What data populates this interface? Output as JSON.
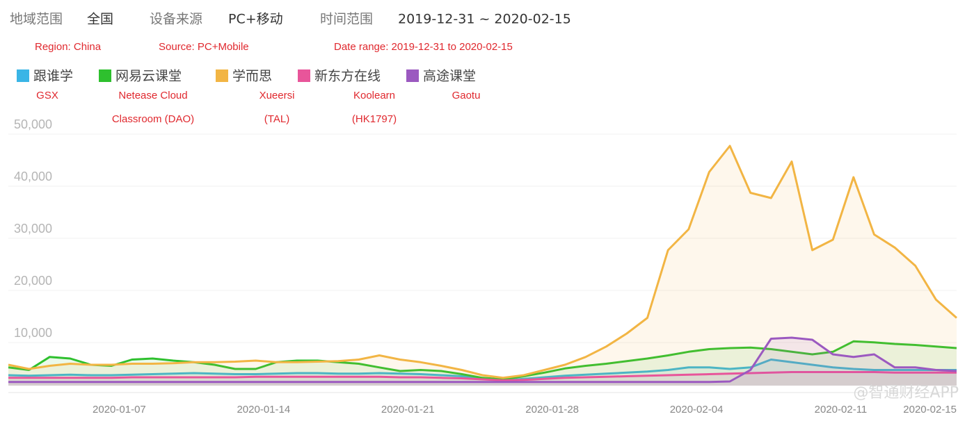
{
  "chart_data": {
    "type": "line",
    "header": [
      {
        "key": "地域范围",
        "value": "全国",
        "note": "Region: China"
      },
      {
        "key": "设备来源",
        "value": "PC+移动",
        "note": "Source: PC+Mobile"
      },
      {
        "key": "时间范围",
        "value": "2019-12-31 ~ 2020-02-15",
        "note": "Date range: 2019-12-31 to 2020-02-15"
      }
    ],
    "watermark": "@智通财经APP",
    "categories": [
      null,
      null,
      null,
      null,
      null,
      null,
      null,
      "2020-01-07",
      null,
      null,
      null,
      null,
      null,
      null,
      "2020-01-14",
      null,
      null,
      null,
      null,
      null,
      null,
      "2020-01-21",
      null,
      null,
      null,
      null,
      null,
      null,
      "2020-01-28",
      null,
      null,
      null,
      null,
      null,
      null,
      "2020-02-04",
      null,
      null,
      null,
      null,
      null,
      null,
      "2020-02-11",
      null,
      null,
      null,
      "2020-02-15"
    ],
    "ylim": [
      0,
      50000
    ],
    "yticks": [
      {
        "value": 10000,
        "label": "10,000"
      },
      {
        "value": 20000,
        "label": "20,000"
      },
      {
        "value": 30000,
        "label": "30,000"
      },
      {
        "value": 40000,
        "label": "40,000"
      },
      {
        "value": 50000,
        "label": "50,000"
      }
    ],
    "grid": true,
    "series": [
      {
        "name": "跟谁学",
        "annotation": [
          "GSX"
        ],
        "color": "#3ab5e6",
        "values": [
          2000,
          1900,
          2000,
          2100,
          2000,
          2000,
          2100,
          2200,
          2300,
          2400,
          2300,
          2200,
          2200,
          2300,
          2400,
          2400,
          2300,
          2300,
          2400,
          2300,
          2200,
          2000,
          1800,
          1400,
          1000,
          1300,
          1600,
          1900,
          2100,
          2300,
          2500,
          2700,
          3000,
          3500,
          3500,
          3200,
          3500,
          5000,
          4500,
          4000,
          3500,
          3200,
          3000,
          3000,
          3000,
          3000,
          3000
        ]
      },
      {
        "name": "网易云课堂",
        "annotation": [
          "Netease Cloud",
          "Classroom (DAO)"
        ],
        "color": "#2ec02e",
        "values": [
          3500,
          3000,
          5500,
          5200,
          4000,
          3800,
          5000,
          5200,
          4800,
          4500,
          4000,
          3200,
          3200,
          4500,
          4800,
          4800,
          4500,
          4200,
          3500,
          2800,
          3000,
          2800,
          2200,
          1500,
          1200,
          1800,
          2500,
          3300,
          3800,
          4200,
          4700,
          5200,
          5800,
          6500,
          7000,
          7200,
          7300,
          7000,
          6500,
          6000,
          6500,
          8500,
          8300,
          8000,
          7800,
          7500,
          7200
        ]
      },
      {
        "name": "学而思",
        "annotation": [
          "Xueersi",
          "(TAL)"
        ],
        "color": "#f2b544",
        "values": [
          4000,
          3200,
          3800,
          4200,
          4000,
          4000,
          4200,
          4200,
          4300,
          4500,
          4500,
          4600,
          4800,
          4500,
          4500,
          4600,
          4700,
          5000,
          5800,
          5000,
          4500,
          3800,
          3000,
          2000,
          1500,
          2000,
          3000,
          4000,
          5500,
          7500,
          10000,
          13000,
          26000,
          30000,
          41000,
          46000,
          37000,
          36000,
          43000,
          26000,
          28000,
          40000,
          29000,
          26500,
          23000,
          16500,
          13000
        ]
      },
      {
        "name": "新东方在线",
        "annotation": [
          "Koolearn",
          "(HK1797)"
        ],
        "color": "#e8559a",
        "values": [
          1500,
          1500,
          1500,
          1500,
          1500,
          1500,
          1600,
          1600,
          1600,
          1600,
          1600,
          1600,
          1700,
          1700,
          1700,
          1700,
          1700,
          1700,
          1700,
          1600,
          1600,
          1500,
          1400,
          1200,
          1000,
          1100,
          1300,
          1500,
          1600,
          1700,
          1800,
          1900,
          2000,
          2100,
          2200,
          2300,
          2400,
          2500,
          2600,
          2600,
          2600,
          2600,
          2600,
          2500,
          2500,
          2500,
          2500
        ]
      },
      {
        "name": "高途课堂",
        "annotation": [
          "Gaotu"
        ],
        "color": "#9b59c0",
        "values": [
          700,
          700,
          700,
          700,
          700,
          700,
          700,
          700,
          700,
          700,
          700,
          700,
          700,
          700,
          700,
          700,
          700,
          700,
          700,
          700,
          700,
          700,
          700,
          700,
          700,
          700,
          700,
          700,
          700,
          700,
          700,
          700,
          700,
          700,
          700,
          800,
          3000,
          9000,
          9200,
          8800,
          6000,
          5500,
          6000,
          3500,
          3500,
          3000,
          2800
        ]
      }
    ]
  }
}
